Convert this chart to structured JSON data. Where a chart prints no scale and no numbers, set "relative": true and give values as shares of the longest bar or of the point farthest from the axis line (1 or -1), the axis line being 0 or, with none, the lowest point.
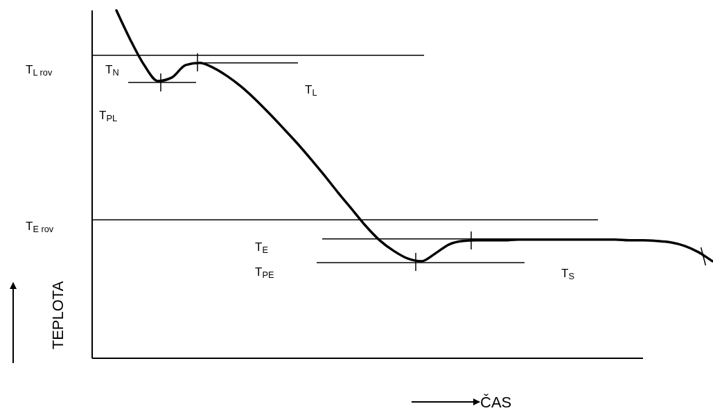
{
  "chart_data": {
    "type": "line",
    "relative": true,
    "xlabel": "ČAS",
    "ylabel": "TEPLOTA",
    "categories": [
      null,
      null,
      null,
      null,
      null,
      null,
      null,
      null,
      null,
      null,
      null,
      null,
      null,
      null,
      null,
      null,
      null,
      null,
      null,
      null,
      null,
      null,
      null,
      null,
      null,
      null,
      null,
      null,
      null,
      null,
      null,
      null,
      null,
      null,
      null,
      null,
      null,
      null,
      null,
      null,
      null,
      null,
      null,
      null
    ],
    "series": [
      {
        "color": "#000000",
        "values": [
          1,
          0.916,
          0.843,
          0.797,
          0.807,
          0.843,
          0.849,
          0.835,
          0.811,
          0.781,
          0.745,
          0.705,
          0.663,
          0.62,
          0.574,
          0.526,
          0.476,
          0.428,
          0.38,
          0.339,
          0.309,
          0.287,
          0.279,
          0.301,
          0.327,
          0.337,
          0.339,
          0.339,
          0.339,
          0.341,
          0.341,
          0.341,
          0.341,
          0.341,
          0.341,
          0.341,
          0.341,
          0.339,
          0.339,
          0.337,
          0.333,
          0.323,
          0.305,
          0.279
        ]
      }
    ],
    "ref_lines": [
      {
        "axis": "y",
        "value": 0.871
      },
      {
        "axis": "y",
        "value": 0.849
      },
      {
        "axis": "y",
        "value": 0.793
      },
      {
        "axis": "y",
        "value": 0.398
      },
      {
        "axis": "y",
        "value": 0.343
      },
      {
        "axis": "y",
        "value": 0.275
      }
    ],
    "annotations": [
      "T$_{L rov}$",
      "T$_{N}$",
      "T$_{L}$",
      "T$_{PL}$",
      "T$_{E rov}$",
      "T$_{E}$",
      "T$_{PE}$",
      "T$_{S}$"
    ]
  }
}
